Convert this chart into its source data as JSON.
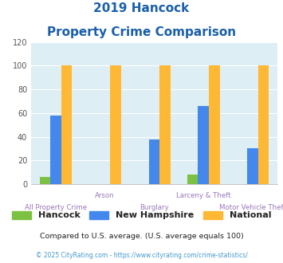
{
  "title_line1": "2019 Hancock",
  "title_line2": "Property Crime Comparison",
  "categories": [
    "All Property Crime",
    "Arson",
    "Burglary",
    "Larceny & Theft",
    "Motor Vehicle Theft"
  ],
  "hancock": [
    6,
    0,
    0,
    8,
    0
  ],
  "new_hampshire": [
    58,
    0,
    38,
    66,
    30
  ],
  "national": [
    100,
    100,
    100,
    100,
    100
  ],
  "hancock_color": "#7dc142",
  "nh_color": "#4488ee",
  "national_color": "#ffb833",
  "ylim": [
    0,
    120
  ],
  "yticks": [
    0,
    20,
    40,
    60,
    80,
    100,
    120
  ],
  "bg_color": "#ddeef4",
  "title_color": "#1a5fa8",
  "xlabel_color": "#9977bb",
  "footer_text": "Compared to U.S. average. (U.S. average equals 100)",
  "footer2_text": "© 2025 CityRating.com - https://www.cityrating.com/crime-statistics/",
  "footer_color": "#222222",
  "footer2_color": "#4499cc",
  "legend_hancock": "Hancock",
  "legend_nh": "New Hampshire",
  "legend_national": "National",
  "bar_width": 0.22
}
